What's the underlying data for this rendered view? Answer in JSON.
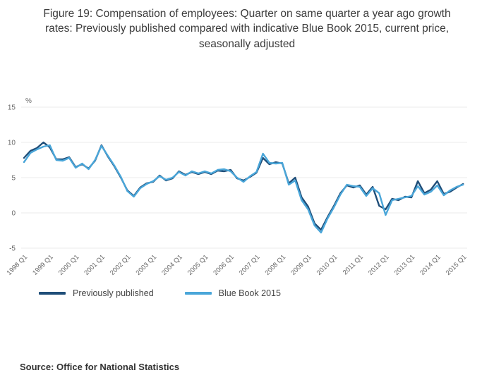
{
  "page": {
    "title": "Figure 19: Compensation of employees: Quarter on same quarter a year ago growth rates: Previously published compared with indicative Blue Book 2015, current price, seasonally adjusted",
    "source": "Source: Office for National Statistics"
  },
  "chart_data": {
    "type": "line",
    "title": "Figure 19: Compensation of employees: Quarter on same quarter a year ago growth rates: Previously published compared with indicative Blue Book 2015, current price, seasonally adjusted",
    "xlabel": "",
    "ylabel": "%",
    "ylim": [
      -5,
      15
    ],
    "yticks": [
      15,
      10,
      5,
      0,
      -5
    ],
    "grid": true,
    "legend_position": "bottom",
    "frequency": "quarterly",
    "x_start": "1998 Q1",
    "x_end": "2015 Q1",
    "x_tick_labels": [
      "1998 Q1",
      "1999 Q1",
      "2000 Q1",
      "2001 Q1",
      "2002 Q1",
      "2003 Q1",
      "2004 Q1",
      "2005 Q1",
      "2006 Q1",
      "2007 Q1",
      "2008 Q1",
      "2009 Q1",
      "2010 Q1",
      "2011 Q1",
      "2012 Q1",
      "2013 Q1",
      "2014 Q1",
      "2015 Q1"
    ],
    "x_tick_every_n_points": 4,
    "series": [
      {
        "name": "Previously published",
        "color": "#1f4e79",
        "values": [
          7.8,
          8.8,
          9.2,
          10.0,
          9.3,
          7.6,
          7.6,
          7.9,
          6.5,
          6.9,
          6.3,
          7.4,
          9.6,
          8.0,
          6.6,
          5.0,
          3.2,
          2.4,
          3.6,
          4.2,
          4.4,
          5.3,
          4.6,
          4.9,
          5.9,
          5.4,
          5.8,
          5.5,
          5.8,
          5.5,
          6.0,
          5.9,
          6.1,
          4.9,
          4.6,
          5.1,
          5.7,
          7.8,
          6.9,
          7.2,
          7.0,
          4.2,
          5.0,
          2.2,
          0.9,
          -1.5,
          -2.4,
          -0.6,
          1.0,
          2.8,
          3.9,
          3.6,
          3.9,
          2.6,
          3.7,
          1.0,
          0.5,
          2.0,
          1.8,
          2.3,
          2.2,
          4.5,
          2.8,
          3.3,
          4.5,
          2.7,
          3.0,
          3.6,
          4.1
        ]
      },
      {
        "name": "Blue Book 2015",
        "color": "#4aa6d9",
        "values": [
          7.2,
          8.5,
          9.0,
          9.4,
          9.6,
          7.5,
          7.4,
          7.8,
          6.4,
          7.0,
          6.2,
          7.5,
          9.5,
          8.1,
          6.7,
          5.1,
          3.1,
          2.3,
          3.5,
          4.1,
          4.5,
          5.2,
          4.7,
          5.0,
          5.8,
          5.3,
          5.9,
          5.6,
          5.9,
          5.6,
          6.1,
          6.2,
          5.9,
          5.0,
          4.4,
          5.2,
          5.8,
          8.4,
          7.1,
          7.0,
          7.1,
          4.0,
          4.6,
          1.8,
          0.5,
          -1.8,
          -2.8,
          -0.8,
          0.8,
          2.6,
          4.0,
          3.8,
          3.7,
          2.4,
          3.5,
          2.8,
          -0.3,
          1.8,
          2.0,
          2.2,
          2.4,
          3.8,
          2.6,
          3.0,
          3.9,
          2.5,
          3.2,
          3.7,
          4.0
        ]
      }
    ],
    "style": {
      "grid_color": "#ebebeb",
      "tick_label_color": "#666666",
      "line_width": 2.4
    }
  }
}
